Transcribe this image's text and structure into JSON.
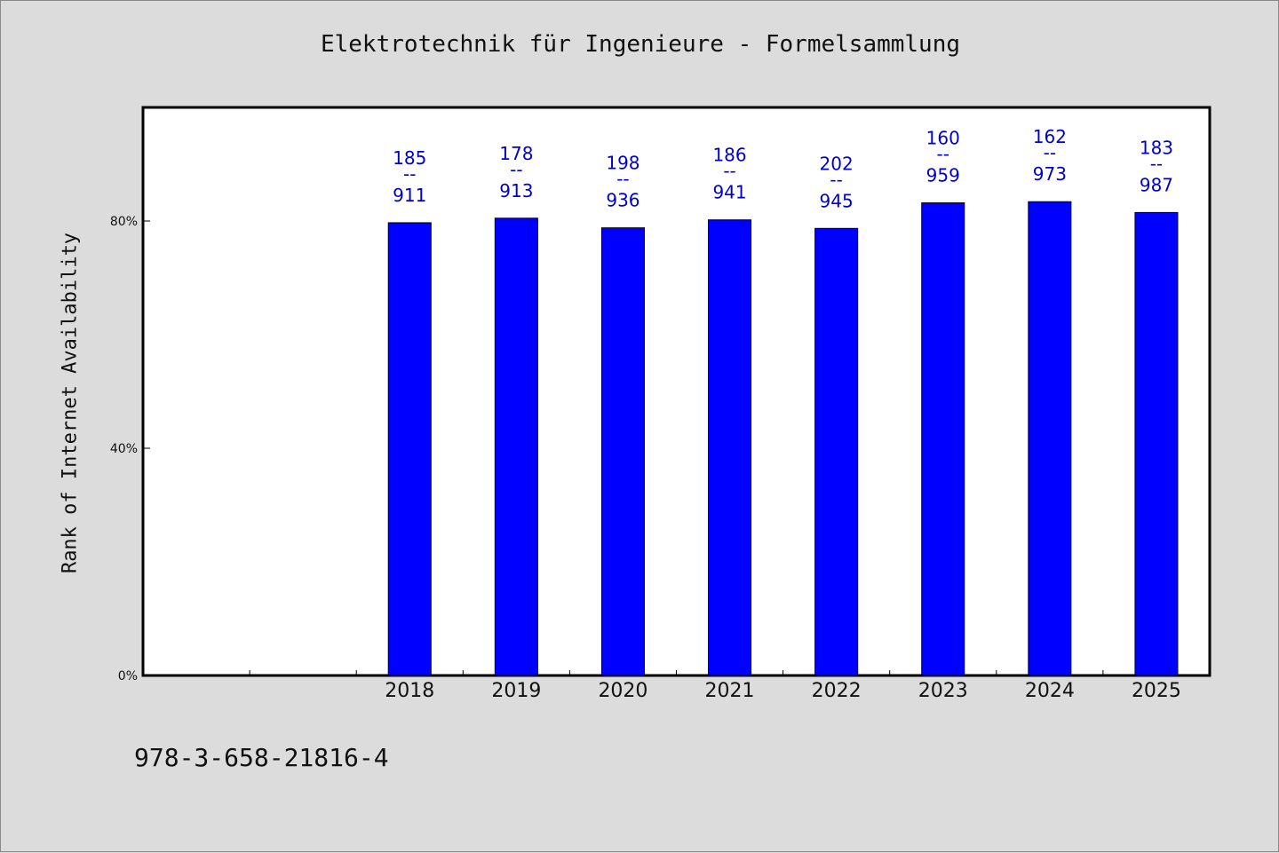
{
  "chart_data": {
    "type": "bar",
    "title": "Elektrotechnik für Ingenieure - Formelsammlung",
    "ylabel": "Rank of Internet Availability",
    "xlabel": "",
    "footer_text": "978-3-658-21816-4",
    "categories": [
      "",
      "",
      "2018",
      "2019",
      "2020",
      "2021",
      "2022",
      "2023",
      "2024",
      "2025"
    ],
    "values": [
      null,
      null,
      79.7,
      80.5,
      78.8,
      80.2,
      78.7,
      83.2,
      83.4,
      81.5
    ],
    "top_labels": [
      null,
      null,
      "185",
      "178",
      "198",
      "186",
      "202",
      "160",
      "162",
      "183"
    ],
    "separators": [
      null,
      null,
      "--",
      "--",
      "--",
      "--",
      "--",
      "--",
      "--",
      "--"
    ],
    "bottom_labels": [
      null,
      null,
      "911",
      "913",
      "936",
      "941",
      "945",
      "959",
      "973",
      "987"
    ],
    "yticks": [
      0,
      40,
      80
    ],
    "ytick_labels": [
      "0%",
      "40%",
      "80%"
    ],
    "ylim": [
      0,
      100
    ],
    "grid": false,
    "bar_color": "#0000ff",
    "label_color": "#0000cc",
    "plot_background": "#ffffff",
    "page_background": "#dcdcdc"
  }
}
